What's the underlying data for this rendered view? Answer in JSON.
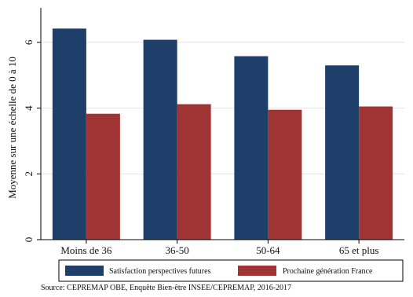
{
  "chart_data": {
    "type": "bar",
    "categories": [
      "Moins de 36",
      "36-50",
      "50-64",
      "65 et plus"
    ],
    "series": [
      {
        "name": "Satisfaction perspectives futures",
        "color": "#1f3f6b",
        "values": [
          6.42,
          6.08,
          5.58,
          5.3
        ]
      },
      {
        "name": "Prochaine génération France",
        "color": "#9e3434",
        "values": [
          3.83,
          4.12,
          3.95,
          4.05
        ]
      }
    ],
    "ylabel": "Moyenne sur une échelle de 0 à 10",
    "yticks": [
      0,
      2,
      4,
      6
    ],
    "ylim": [
      0,
      7.05
    ],
    "legend_position": "bottom",
    "grid": true
  },
  "source": "Source: CEPREMAP OBE, Enquête Bien-être INSEE/CEPREMAP, 2016-2017"
}
